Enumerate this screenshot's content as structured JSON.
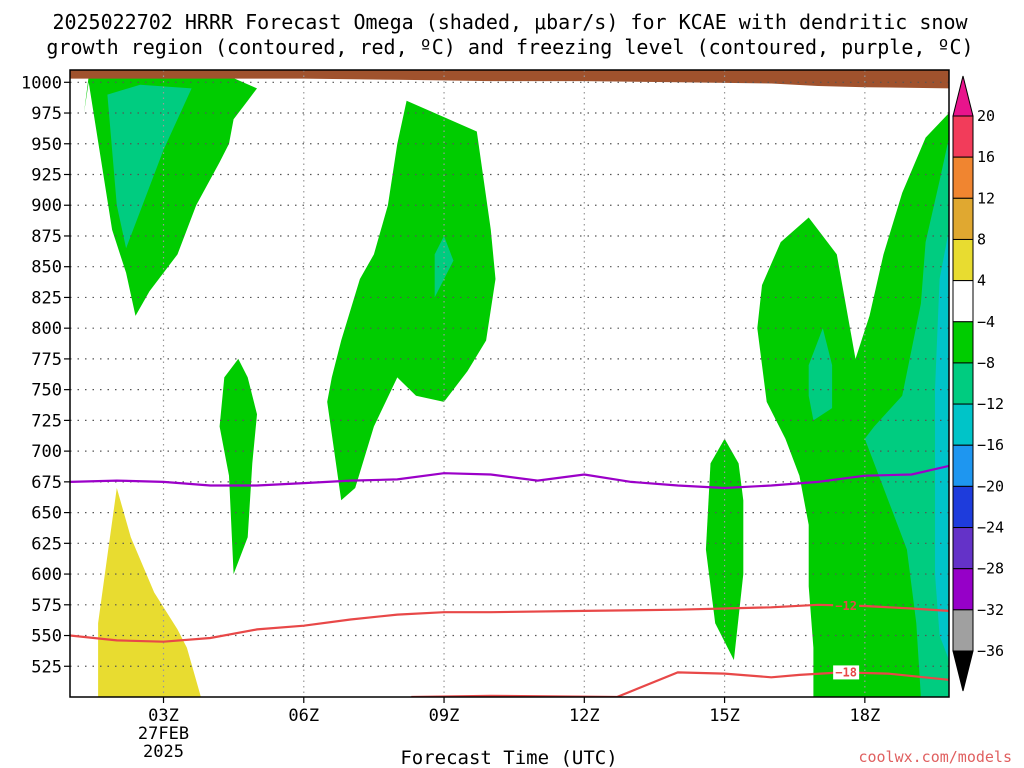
{
  "chart_data": {
    "type": "heatmap",
    "title_line1": "2025022702 HRRR Forecast Omega (shaded, μbar/s) for KCAE with dendritic snow",
    "title_line2": "growth region (contoured, red, ºC) and freezing level (contoured, purple, ºC)",
    "xlabel": "Forecast Time (UTC)",
    "credit": "coolwx.com/models",
    "x_range_hours": [
      1.0,
      19.8
    ],
    "y_range_hpa": [
      1010,
      500
    ],
    "y_ticks": [
      "525",
      "550",
      "575",
      "600",
      "625",
      "650",
      "675",
      "700",
      "725",
      "750",
      "775",
      "800",
      "825",
      "850",
      "875",
      "900",
      "925",
      "950",
      "975",
      "1000"
    ],
    "x_ticks": [
      {
        "hour": 3,
        "label": "03Z",
        "sub1": "27FEB",
        "sub2": "2025"
      },
      {
        "hour": 6,
        "label": "06Z",
        "sub1": "",
        "sub2": ""
      },
      {
        "hour": 9,
        "label": "09Z",
        "sub1": "",
        "sub2": ""
      },
      {
        "hour": 12,
        "label": "12Z",
        "sub1": "",
        "sub2": ""
      },
      {
        "hour": 15,
        "label": "15Z",
        "sub1": "",
        "sub2": ""
      },
      {
        "hour": 18,
        "label": "18Z",
        "sub1": "",
        "sub2": ""
      }
    ],
    "colorbar": {
      "levels": [
        "20",
        "16",
        "12",
        "8",
        "4",
        "−4",
        "−8",
        "−12",
        "−16",
        "−20",
        "−24",
        "−28",
        "−32",
        "−36"
      ],
      "colors": [
        "#f23c5a",
        "#f08530",
        "#e0a830",
        "#e8dc30",
        "#ffffff",
        "#00cc00",
        "#00cc80",
        "#00c4c8",
        "#1e96f0",
        "#1e3cdc",
        "#6432c8",
        "#9600c8",
        "#a0a0a0"
      ],
      "top_arrow_color": "#e8148c",
      "bottom_arrow_color": "#000000"
    },
    "series": [
      {
        "kind": "isotherm",
        "value": -18,
        "label": "−18",
        "color": "#e84848",
        "points": [
          [
            8.3,
            500
          ],
          [
            10,
            501
          ],
          [
            12.7,
            500
          ],
          [
            14.0,
            520
          ],
          [
            15.0,
            519
          ],
          [
            16.0,
            516
          ],
          [
            16.6,
            518
          ],
          [
            17.5,
            520
          ],
          [
            18.5,
            519
          ],
          [
            19.8,
            514
          ]
        ]
      },
      {
        "kind": "isotherm",
        "value": -12,
        "label": "−12",
        "color": "#e84848",
        "points": [
          [
            1.0,
            550
          ],
          [
            2.0,
            546
          ],
          [
            3.0,
            545
          ],
          [
            4.0,
            548
          ],
          [
            5.0,
            555
          ],
          [
            6.0,
            558
          ],
          [
            7.0,
            563
          ],
          [
            8.0,
            567
          ],
          [
            9.0,
            569
          ],
          [
            10.0,
            569
          ],
          [
            12.0,
            570
          ],
          [
            14.0,
            571
          ],
          [
            15.0,
            572
          ],
          [
            16.0,
            573
          ],
          [
            17.0,
            575
          ],
          [
            18.0,
            574
          ],
          [
            19.0,
            572
          ],
          [
            19.8,
            570
          ]
        ]
      },
      {
        "kind": "freezing_level",
        "value": 0,
        "label": "",
        "color": "#9b00c8",
        "points": [
          [
            1.0,
            675
          ],
          [
            2.0,
            676
          ],
          [
            3.0,
            675
          ],
          [
            4.0,
            672
          ],
          [
            5.0,
            672
          ],
          [
            6.0,
            674
          ],
          [
            7.0,
            676
          ],
          [
            8.0,
            677
          ],
          [
            9.0,
            682
          ],
          [
            10.0,
            681
          ],
          [
            11.0,
            676
          ],
          [
            12.0,
            681
          ],
          [
            13.0,
            675
          ],
          [
            14.0,
            672
          ],
          [
            15.0,
            670
          ],
          [
            16.0,
            672
          ],
          [
            17.0,
            675
          ],
          [
            18.0,
            680
          ],
          [
            19.0,
            681
          ],
          [
            19.8,
            688
          ]
        ]
      }
    ],
    "omega_regions": [
      {
        "bin": "4 to 8",
        "color": "#e8dc30",
        "points": [
          [
            1.6,
            500
          ],
          [
            3.8,
            500
          ],
          [
            3.5,
            540
          ],
          [
            3.3,
            555
          ],
          [
            2.8,
            585
          ],
          [
            2.3,
            630
          ],
          [
            2.0,
            670
          ],
          [
            1.8,
            615
          ],
          [
            1.6,
            560
          ]
        ]
      },
      {
        "bin": "-4 to -8",
        "color": "#00cc00",
        "points": [
          [
            1.4,
            1000
          ],
          [
            1.9,
            880
          ],
          [
            2.2,
            845
          ],
          [
            2.4,
            810
          ],
          [
            2.7,
            830
          ],
          [
            3.3,
            860
          ],
          [
            3.7,
            900
          ],
          [
            4.2,
            935
          ],
          [
            4.4,
            950
          ],
          [
            4.5,
            970
          ],
          [
            4.8,
            985
          ],
          [
            5.0,
            995
          ],
          [
            4.4,
            1005
          ],
          [
            2.2,
            1008
          ],
          [
            1.4,
            1005
          ],
          [
            1.3,
            975
          ]
        ]
      },
      {
        "bin": "-8 to -12",
        "color": "#00cc80",
        "points": [
          [
            1.8,
            990
          ],
          [
            2.0,
            900
          ],
          [
            2.2,
            865
          ],
          [
            2.6,
            905
          ],
          [
            3.0,
            945
          ],
          [
            3.3,
            970
          ],
          [
            3.6,
            995
          ],
          [
            2.5,
            998
          ]
        ]
      },
      {
        "bin": "-4 to -8",
        "color": "#00cc00",
        "points": [
          [
            4.5,
            600
          ],
          [
            4.8,
            630
          ],
          [
            4.9,
            690
          ],
          [
            5.0,
            730
          ],
          [
            4.8,
            760
          ],
          [
            4.6,
            775
          ],
          [
            4.3,
            760
          ],
          [
            4.2,
            720
          ],
          [
            4.4,
            680
          ]
        ]
      },
      {
        "bin": "-4 to -8",
        "color": "#00cc00",
        "points": [
          [
            6.8,
            660
          ],
          [
            7.1,
            670
          ],
          [
            7.5,
            720
          ],
          [
            8.0,
            760
          ],
          [
            8.4,
            745
          ],
          [
            9.0,
            740
          ],
          [
            9.5,
            765
          ],
          [
            9.9,
            790
          ],
          [
            10.1,
            840
          ],
          [
            10.0,
            880
          ],
          [
            9.7,
            960
          ],
          [
            8.2,
            985
          ],
          [
            8.0,
            950
          ],
          [
            7.8,
            900
          ],
          [
            7.5,
            860
          ],
          [
            7.2,
            840
          ],
          [
            6.8,
            790
          ],
          [
            6.6,
            760
          ],
          [
            6.5,
            740
          ]
        ]
      },
      {
        "bin": "-8 to -12",
        "color": "#00cc80",
        "points": [
          [
            8.8,
            825
          ],
          [
            9.2,
            855
          ],
          [
            9.0,
            875
          ],
          [
            8.8,
            860
          ]
        ]
      },
      {
        "bin": "-4 to -8",
        "color": "#00cc00",
        "points": [
          [
            15.2,
            530
          ],
          [
            15.4,
            600
          ],
          [
            15.4,
            660
          ],
          [
            15.3,
            690
          ],
          [
            15.0,
            710
          ],
          [
            14.7,
            690
          ],
          [
            14.6,
            620
          ],
          [
            14.8,
            560
          ]
        ]
      },
      {
        "bin": "-4 to -8",
        "color": "#00cc00",
        "points": [
          [
            16.9,
            500
          ],
          [
            19.8,
            500
          ],
          [
            19.8,
            975
          ],
          [
            19.3,
            955
          ],
          [
            18.8,
            910
          ],
          [
            18.4,
            860
          ],
          [
            18.1,
            810
          ],
          [
            17.8,
            775
          ],
          [
            17.4,
            860
          ],
          [
            16.8,
            890
          ],
          [
            16.2,
            870
          ],
          [
            15.8,
            835
          ],
          [
            15.7,
            800
          ],
          [
            15.9,
            740
          ],
          [
            16.3,
            710
          ],
          [
            16.6,
            680
          ],
          [
            16.8,
            640
          ],
          [
            16.8,
            590
          ],
          [
            16.9,
            540
          ]
        ]
      },
      {
        "bin": "-8 to -12",
        "color": "#00cc80",
        "points": [
          [
            19.2,
            500
          ],
          [
            19.8,
            500
          ],
          [
            19.8,
            955
          ],
          [
            19.6,
            920
          ],
          [
            19.3,
            870
          ],
          [
            19.2,
            820
          ],
          [
            18.8,
            745
          ],
          [
            18.2,
            720
          ],
          [
            18.0,
            710
          ],
          [
            18.3,
            680
          ],
          [
            18.9,
            620
          ],
          [
            19.1,
            560
          ]
        ]
      },
      {
        "bin": "-8 to -12",
        "color": "#00cc80",
        "points": [
          [
            16.9,
            725
          ],
          [
            17.3,
            735
          ],
          [
            17.3,
            770
          ],
          [
            17.1,
            800
          ],
          [
            16.8,
            770
          ],
          [
            16.8,
            745
          ]
        ]
      },
      {
        "bin": "-12 to -16",
        "color": "#00c4c8",
        "points": [
          [
            19.6,
            550
          ],
          [
            19.8,
            530
          ],
          [
            19.8,
            880
          ],
          [
            19.6,
            840
          ],
          [
            19.5,
            750
          ],
          [
            19.5,
            660
          ],
          [
            19.5,
            600
          ]
        ]
      }
    ],
    "terrain_color": "#a0522d"
  }
}
